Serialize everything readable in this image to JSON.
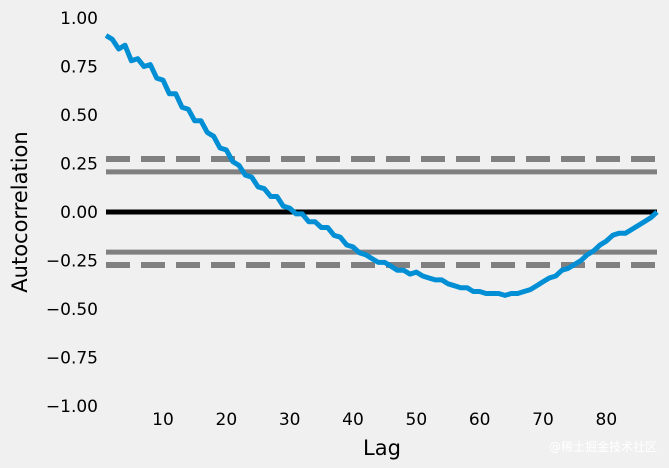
{
  "colors": {
    "background": "#f0f0f0",
    "series": "#008fd5",
    "zero_line": "#000000",
    "confidence": "#808080"
  },
  "watermark": "@稀土掘金技术社区",
  "chart_data": {
    "type": "line",
    "title": "",
    "xlabel": "Lag",
    "ylabel": "Autocorrelation",
    "xlim": [
      1,
      88
    ],
    "ylim": [
      -1.0,
      1.0
    ],
    "xticks": [
      10,
      20,
      30,
      40,
      50,
      60,
      70,
      80
    ],
    "yticks": [
      -1.0,
      -0.75,
      -0.5,
      -0.25,
      0.0,
      0.25,
      0.5,
      0.75,
      1.0
    ],
    "ytick_labels": [
      "−1.00",
      "−0.75",
      "−0.50",
      "−0.25",
      "0.00",
      "0.25",
      "0.50",
      "0.75",
      "1.00"
    ],
    "xtick_labels": [
      "10",
      "20",
      "30",
      "40",
      "50",
      "60",
      "70",
      "80"
    ],
    "grid": false,
    "reference_lines": [
      {
        "y": 0.0,
        "style": "solid",
        "role": "zero"
      },
      {
        "y": 0.207,
        "style": "solid",
        "role": "95% confidence"
      },
      {
        "y": -0.207,
        "style": "solid",
        "role": "95% confidence"
      },
      {
        "y": 0.273,
        "style": "dashed",
        "role": "99% confidence"
      },
      {
        "y": -0.273,
        "style": "dashed",
        "role": "99% confidence"
      }
    ],
    "series": [
      {
        "x": [
          1,
          2,
          3,
          4,
          5,
          6,
          7,
          8,
          9,
          10,
          11,
          12,
          13,
          14,
          15,
          16,
          17,
          18,
          19,
          20,
          21,
          22,
          23,
          24,
          25,
          26,
          27,
          28,
          29,
          30,
          31,
          32,
          33,
          34,
          35,
          36,
          37,
          38,
          39,
          40,
          41,
          42,
          43,
          44,
          45,
          46,
          47,
          48,
          49,
          50,
          51,
          52,
          53,
          54,
          55,
          56,
          57,
          58,
          59,
          60,
          61,
          62,
          63,
          64,
          65,
          66,
          67,
          68,
          69,
          70,
          71,
          72,
          73,
          74,
          75,
          76,
          77,
          78,
          79,
          80,
          81,
          82,
          83,
          84,
          85,
          86,
          87,
          88
        ],
        "values": [
          0.91,
          0.89,
          0.84,
          0.86,
          0.78,
          0.79,
          0.75,
          0.76,
          0.69,
          0.68,
          0.61,
          0.61,
          0.54,
          0.53,
          0.47,
          0.47,
          0.41,
          0.39,
          0.33,
          0.32,
          0.26,
          0.24,
          0.19,
          0.18,
          0.13,
          0.12,
          0.08,
          0.08,
          0.03,
          0.02,
          -0.01,
          -0.01,
          -0.05,
          -0.05,
          -0.08,
          -0.08,
          -0.12,
          -0.13,
          -0.17,
          -0.18,
          -0.21,
          -0.22,
          -0.24,
          -0.26,
          -0.26,
          -0.28,
          -0.3,
          -0.3,
          -0.32,
          -0.31,
          -0.33,
          -0.34,
          -0.35,
          -0.35,
          -0.37,
          -0.38,
          -0.39,
          -0.39,
          -0.41,
          -0.41,
          -0.42,
          -0.42,
          -0.42,
          -0.43,
          -0.42,
          -0.42,
          -0.41,
          -0.4,
          -0.38,
          -0.36,
          -0.34,
          -0.33,
          -0.3,
          -0.29,
          -0.27,
          -0.25,
          -0.22,
          -0.2,
          -0.17,
          -0.15,
          -0.12,
          -0.11,
          -0.11,
          -0.09,
          -0.07,
          -0.05,
          -0.03,
          0.0
        ]
      }
    ]
  }
}
